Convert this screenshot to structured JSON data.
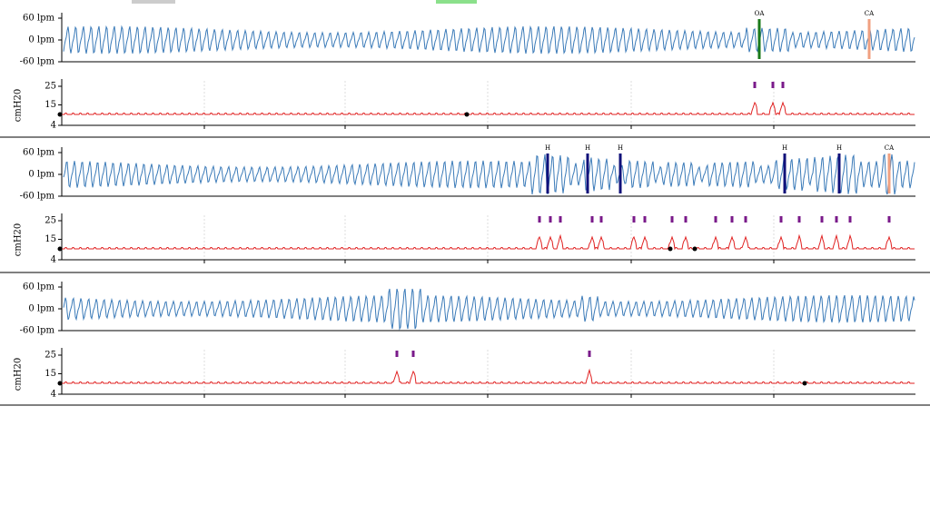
{
  "panels": [
    {
      "flow": {
        "yticks": [
          "60 lpm",
          "0 lpm",
          "-60 lpm"
        ]
      },
      "pressure": {
        "ylabel": "cmH20",
        "ylim": [
          4,
          25
        ],
        "yticks": [
          25,
          15,
          4
        ]
      },
      "events": [
        {
          "label": "OA",
          "color": "#1a7a1a"
        },
        {
          "label": "CA",
          "color": "#f0a080"
        }
      ]
    },
    {
      "flow": {
        "yticks": [
          "60 lpm",
          "0 lpm",
          "-60 lpm"
        ]
      },
      "pressure": {
        "ylabel": "cmH20",
        "ylim": [
          4,
          25
        ],
        "yticks": [
          25,
          15,
          4
        ]
      },
      "events": [
        {
          "label": "H",
          "color": "#10107a"
        },
        {
          "label": "H",
          "color": "#10107a"
        },
        {
          "label": "H",
          "color": "#10107a"
        },
        {
          "label": "H",
          "color": "#10107a"
        },
        {
          "label": "H",
          "color": "#10107a"
        },
        {
          "label": "CA",
          "color": "#f0a080"
        }
      ]
    },
    {
      "flow": {
        "yticks": [
          "60 lpm",
          "0 lpm",
          "-60 lpm"
        ]
      },
      "pressure": {
        "ylabel": "cmH20",
        "ylim": [
          4,
          25
        ],
        "yticks": [
          25,
          15,
          4
        ]
      },
      "events": []
    }
  ]
}
